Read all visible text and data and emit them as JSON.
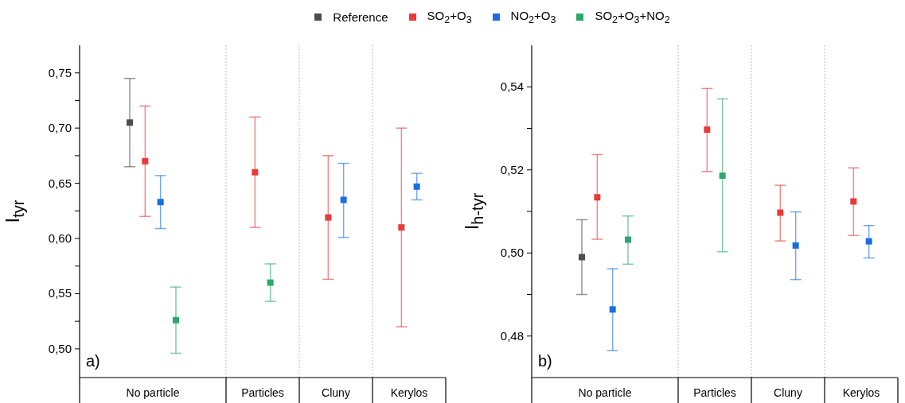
{
  "chart_data": [
    {
      "type": "scatter",
      "categories": [
        "No particle",
        "Particles",
        "Cluny",
        "Kerylos"
      ],
      "ylabel": "I$_{tyr}$",
      "ylim": [
        0.474,
        0.775
      ],
      "yticks": [
        {
          "value": 0.5,
          "label": "0,50"
        },
        {
          "value": 0.525,
          "label": null
        },
        {
          "value": 0.55,
          "label": "0,55"
        },
        {
          "value": 0.575,
          "label": null
        },
        {
          "value": 0.6,
          "label": "0,60"
        },
        {
          "value": 0.625,
          "label": null
        },
        {
          "value": 0.65,
          "label": "0,65"
        },
        {
          "value": 0.675,
          "label": null
        },
        {
          "value": 0.7,
          "label": "0,70"
        },
        {
          "value": 0.725,
          "label": null
        },
        {
          "value": 0.75,
          "label": "0,75"
        }
      ],
      "marker": "square",
      "grid": "x",
      "legend": "top",
      "annotations": [
        "a)"
      ],
      "series": [
        {
          "name": "Reference",
          "color": "#4d4d4d",
          "values": [
            0.705,
            null,
            null,
            null
          ],
          "errors": [
            [
              0.665,
              0.745
            ],
            null,
            null,
            null
          ]
        },
        {
          "name": "SO$_{2}$+O$_{3}$",
          "color": "#e83a3a",
          "values": [
            0.67,
            0.66,
            0.619,
            0.61
          ],
          "errors": [
            [
              0.62,
              0.72
            ],
            [
              0.61,
              0.71
            ],
            [
              0.563,
              0.675
            ],
            [
              0.52,
              0.7
            ]
          ]
        },
        {
          "name": "NO$_{2}$+O$_{3}$",
          "color": "#1a6fdf",
          "values": [
            0.633,
            null,
            0.635,
            0.647
          ],
          "errors": [
            [
              0.609,
              0.657
            ],
            null,
            [
              0.601,
              0.668
            ],
            [
              0.635,
              0.659
            ]
          ]
        },
        {
          "name": "SO$_{2}$+O$_{3}$+NO$_{2}$",
          "color": "#2ea86a",
          "values": [
            0.526,
            0.56,
            null,
            null
          ],
          "errors": [
            [
              0.496,
              0.556
            ],
            [
              0.543,
              0.577
            ],
            null,
            null
          ]
        }
      ]
    },
    {
      "type": "scatter",
      "categories": [
        "No particle",
        "Particles",
        "Cluny",
        "Kerylos"
      ],
      "ylabel": "I$_{h-tyr}$",
      "ylim": [
        0.47,
        0.55
      ],
      "yticks": [
        {
          "value": 0.48,
          "label": "0,48"
        },
        {
          "value": 0.49,
          "label": null
        },
        {
          "value": 0.5,
          "label": "0,50"
        },
        {
          "value": 0.51,
          "label": null
        },
        {
          "value": 0.52,
          "label": "0,52"
        },
        {
          "value": 0.53,
          "label": null
        },
        {
          "value": 0.54,
          "label": "0,54"
        }
      ],
      "marker": "square",
      "grid": "x",
      "annotations": [
        "b)"
      ],
      "series": [
        {
          "name": "Reference",
          "color": "#4d4d4d",
          "values": [
            0.499,
            null,
            null,
            null
          ],
          "errors": [
            [
              0.49,
              0.508
            ],
            null,
            null,
            null
          ]
        },
        {
          "name": "SO$_{2}$+O$_{3}$",
          "color": "#e83a3a",
          "values": [
            0.5134,
            0.5297,
            0.5097,
            0.5124
          ],
          "errors": [
            [
              0.5033,
              0.5237
            ],
            [
              0.5196,
              0.5396
            ],
            [
              0.5029,
              0.5163
            ],
            [
              0.5042,
              0.5205
            ]
          ]
        },
        {
          "name": "NO$_{2}$+O$_{3}$",
          "color": "#1a6fdf",
          "values": [
            0.4864,
            null,
            0.5018,
            0.5028
          ],
          "errors": [
            [
              0.4765,
              0.4962
            ],
            null,
            [
              0.4936,
              0.5099
            ],
            [
              0.4988,
              0.5066
            ]
          ]
        },
        {
          "name": "SO$_{2}$+O$_{3}$+NO$_{2}$",
          "color": "#2ea86a",
          "values": [
            0.5032,
            0.5186,
            null,
            null
          ],
          "errors": [
            [
              0.4973,
              0.5089
            ],
            [
              0.5003,
              0.5371
            ],
            null,
            null
          ]
        }
      ]
    }
  ]
}
